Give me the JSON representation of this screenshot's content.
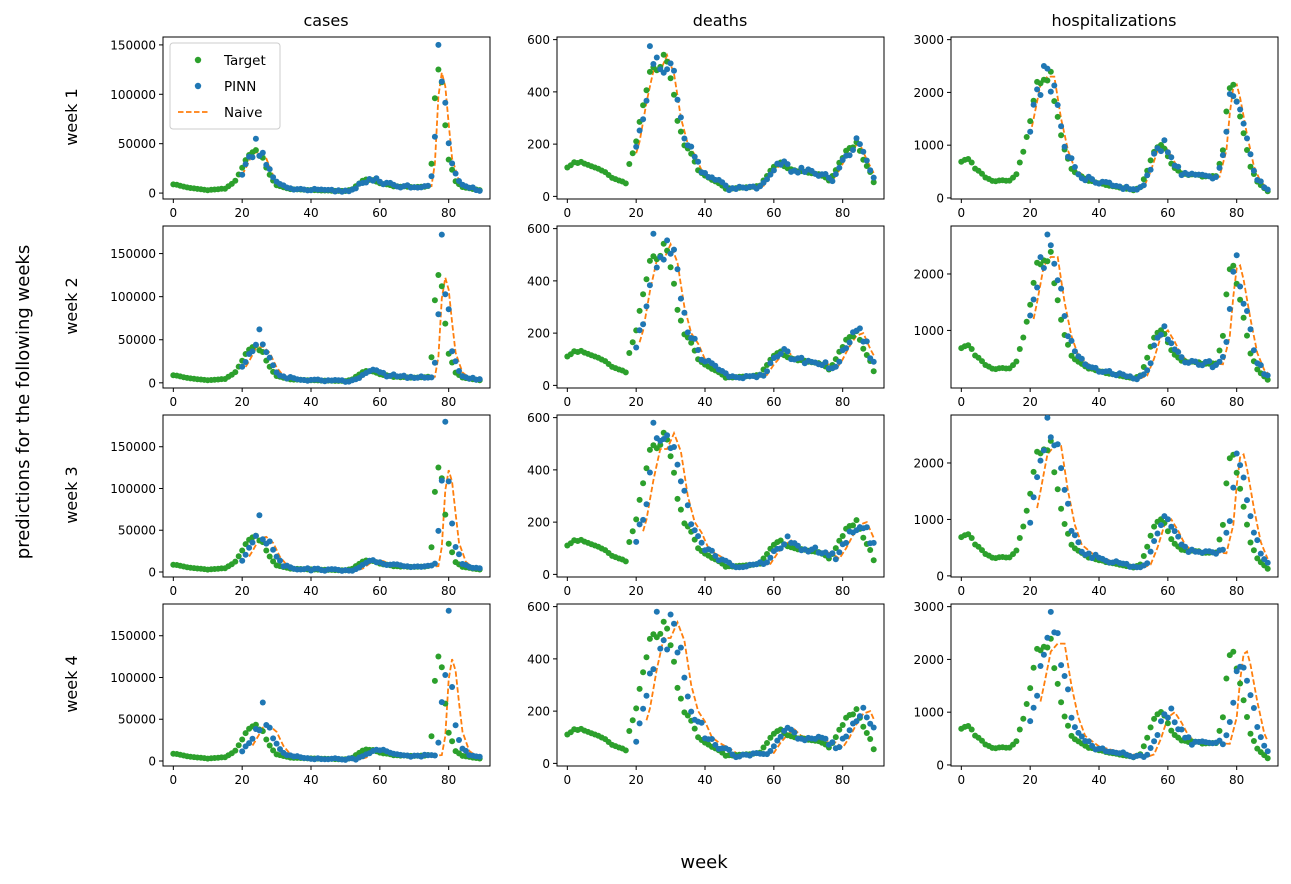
{
  "figure": {
    "xlabel": "week",
    "ylabel": "predictions for the following weeks",
    "column_titles": [
      "cases",
      "deaths",
      "hospitalizations"
    ],
    "row_labels": [
      "week 1",
      "week 2",
      "week 3",
      "week 4"
    ]
  },
  "legend": {
    "placement": "upper-left of first panel",
    "entries": [
      {
        "label": "Target",
        "color": "#2ca02c",
        "marker": "dot"
      },
      {
        "label": "PINN",
        "color": "#1f77b4",
        "marker": "dot"
      },
      {
        "label": "Naive",
        "color": "#ff7f0e",
        "marker": "dashed-line"
      }
    ]
  },
  "colors": {
    "target": "#2ca02c",
    "pinn": "#1f77b4",
    "naive": "#ff7f0e"
  },
  "chart_data": {
    "type": "scatter",
    "layout": "4 rows x 3 columns grid of line/scatter panels",
    "x_ticks": [
      0,
      20,
      40,
      60,
      80
    ],
    "xlim": [
      -3,
      92
    ],
    "columns": [
      {
        "name": "cases",
        "ylims": [
          [
            -6000,
            158000
          ],
          [
            -6000,
            182000
          ],
          [
            -6000,
            188000
          ],
          [
            -6000,
            188000
          ]
        ],
        "yticks": [
          [
            0,
            50000,
            100000,
            150000
          ],
          [
            0,
            50000,
            100000,
            150000
          ],
          [
            0,
            50000,
            100000,
            150000
          ],
          [
            0,
            50000,
            100000,
            150000
          ]
        ],
        "target_keypoints": [
          [
            0,
            9000
          ],
          [
            5,
            5000
          ],
          [
            10,
            3000
          ],
          [
            15,
            4500
          ],
          [
            18,
            12000
          ],
          [
            20,
            25000
          ],
          [
            22,
            40000
          ],
          [
            24,
            42000
          ],
          [
            26,
            35000
          ],
          [
            28,
            18000
          ],
          [
            30,
            8000
          ],
          [
            34,
            4000
          ],
          [
            40,
            3000
          ],
          [
            50,
            2000
          ],
          [
            52,
            4000
          ],
          [
            54,
            10000
          ],
          [
            56,
            14000
          ],
          [
            58,
            13000
          ],
          [
            60,
            10000
          ],
          [
            64,
            7000
          ],
          [
            70,
            6000
          ],
          [
            74,
            7000
          ],
          [
            75,
            30000
          ],
          [
            76,
            98000
          ],
          [
            77,
            122000
          ],
          [
            78,
            108000
          ],
          [
            79,
            70000
          ],
          [
            80,
            35000
          ],
          [
            82,
            12000
          ],
          [
            84,
            6000
          ],
          [
            89,
            3000
          ]
        ],
        "pinn_peak": [
          55000,
          62000,
          68000,
          70000
        ],
        "pinn_spike": [
          150000,
          172000,
          180000,
          180000
        ]
      },
      {
        "name": "deaths",
        "ylims": [
          [
            -10,
            610
          ],
          [
            -10,
            610
          ],
          [
            -10,
            610
          ],
          [
            -10,
            610
          ]
        ],
        "yticks": [
          [
            0,
            200,
            400,
            600
          ],
          [
            0,
            200,
            400,
            600
          ],
          [
            0,
            200,
            400,
            600
          ],
          [
            0,
            200,
            400,
            600
          ]
        ],
        "target_keypoints": [
          [
            0,
            115
          ],
          [
            2,
            132
          ],
          [
            5,
            125
          ],
          [
            8,
            110
          ],
          [
            10,
            100
          ],
          [
            12,
            80
          ],
          [
            14,
            65
          ],
          [
            16,
            55
          ],
          [
            17,
            50
          ],
          [
            18,
            120
          ],
          [
            20,
            210
          ],
          [
            22,
            360
          ],
          [
            24,
            480
          ],
          [
            26,
            480
          ],
          [
            28,
            540
          ],
          [
            30,
            470
          ],
          [
            32,
            300
          ],
          [
            34,
            200
          ],
          [
            36,
            160
          ],
          [
            38,
            100
          ],
          [
            40,
            80
          ],
          [
            44,
            50
          ],
          [
            46,
            30
          ],
          [
            48,
            30
          ],
          [
            52,
            35
          ],
          [
            56,
            40
          ],
          [
            58,
            80
          ],
          [
            60,
            110
          ],
          [
            62,
            130
          ],
          [
            64,
            105
          ],
          [
            66,
            100
          ],
          [
            70,
            90
          ],
          [
            74,
            80
          ],
          [
            76,
            60
          ],
          [
            78,
            100
          ],
          [
            80,
            150
          ],
          [
            82,
            190
          ],
          [
            84,
            200
          ],
          [
            86,
            140
          ],
          [
            88,
            90
          ],
          [
            89,
            55
          ]
        ],
        "pinn_peak": [
          575,
          580,
          580,
          580
        ]
      },
      {
        "name": "hospitalizations",
        "ylims": [
          [
            -20,
            3050
          ],
          [
            -20,
            2850
          ],
          [
            -20,
            2850
          ],
          [
            -20,
            3050
          ]
        ],
        "yticks": [
          [
            0,
            1000,
            2000,
            3000
          ],
          [
            1000,
            2000
          ],
          [
            0,
            1000,
            2000
          ],
          [
            0,
            1000,
            2000,
            3000
          ]
        ],
        "target_keypoints": [
          [
            0,
            700
          ],
          [
            2,
            750
          ],
          [
            4,
            550
          ],
          [
            6,
            450
          ],
          [
            8,
            350
          ],
          [
            10,
            320
          ],
          [
            14,
            340
          ],
          [
            16,
            450
          ],
          [
            18,
            900
          ],
          [
            20,
            1500
          ],
          [
            22,
            2150
          ],
          [
            24,
            2300
          ],
          [
            26,
            2300
          ],
          [
            28,
            1500
          ],
          [
            30,
            900
          ],
          [
            32,
            550
          ],
          [
            36,
            350
          ],
          [
            40,
            280
          ],
          [
            46,
            200
          ],
          [
            50,
            150
          ],
          [
            52,
            200
          ],
          [
            54,
            500
          ],
          [
            56,
            900
          ],
          [
            58,
            1000
          ],
          [
            60,
            800
          ],
          [
            62,
            550
          ],
          [
            64,
            450
          ],
          [
            70,
            420
          ],
          [
            74,
            400
          ],
          [
            76,
            900
          ],
          [
            77,
            1600
          ],
          [
            78,
            2100
          ],
          [
            79,
            2150
          ],
          [
            80,
            1900
          ],
          [
            82,
            1200
          ],
          [
            84,
            600
          ],
          [
            86,
            300
          ],
          [
            89,
            130
          ]
        ],
        "pinn_peak": [
          2500,
          2700,
          2800,
          2900
        ]
      }
    ],
    "series": [
      {
        "name": "Target",
        "style": "green dots"
      },
      {
        "name": "PINN",
        "style": "blue dots"
      },
      {
        "name": "Naive",
        "style": "orange dashed line, Target shifted by row's week horizon"
      }
    ]
  }
}
